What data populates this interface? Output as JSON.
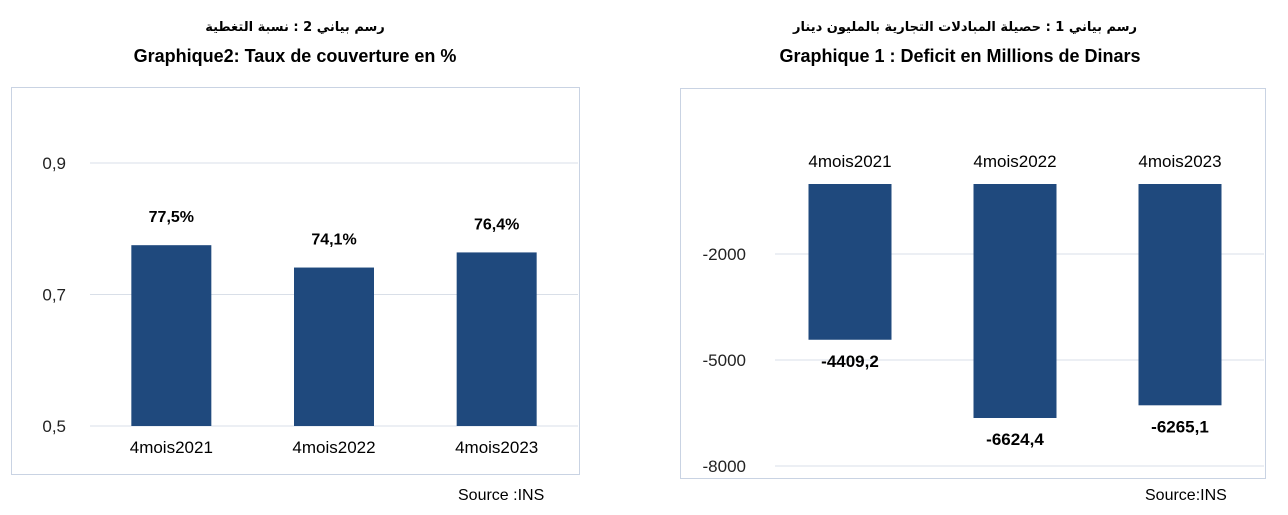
{
  "left": {
    "title_ar": "رسم بياني 2 : نسبة التغطية",
    "title_fr": "Graphique2: Taux de couverture en %",
    "source": "Source :INS"
  },
  "right": {
    "title_ar": "رسم بياني 1 : حصيلة المبادلات التجارية بالمليون دينار",
    "title_fr": "Graphique 1 : Deficit en Millions de Dinars",
    "source": "Source:INS"
  },
  "chart_data": [
    {
      "type": "bar",
      "title": "Graphique2: Taux de couverture en %",
      "categories": [
        "4mois2021",
        "4mois2022",
        "4mois2023"
      ],
      "values": [
        0.775,
        0.741,
        0.764
      ],
      "data_labels": [
        "77,5%",
        "74,1%",
        "76,4%"
      ],
      "yticks": [
        0.5,
        0.7,
        0.9
      ],
      "ytick_labels": [
        "0,5",
        "0,7",
        "0,9"
      ],
      "ylim": [
        0.5,
        0.9
      ],
      "grid": true,
      "bar_color": "#1f497d",
      "grid_color": "#d9dfe8"
    },
    {
      "type": "bar",
      "title": "Graphique 1 : Deficit en Millions de Dinars",
      "categories": [
        "4mois2021",
        "4mois2022",
        "4mois2023"
      ],
      "values": [
        -4409.2,
        -6624.4,
        -6265.1
      ],
      "data_labels": [
        "-4409,2",
        "-6624,4",
        "-6265,1"
      ],
      "ytick_labels": [
        "-2000",
        "-5000",
        "-8000"
      ],
      "category_axis_position": "top",
      "grid": true,
      "bar_color": "#1f497d",
      "grid_color": "#d9dfe8"
    }
  ]
}
